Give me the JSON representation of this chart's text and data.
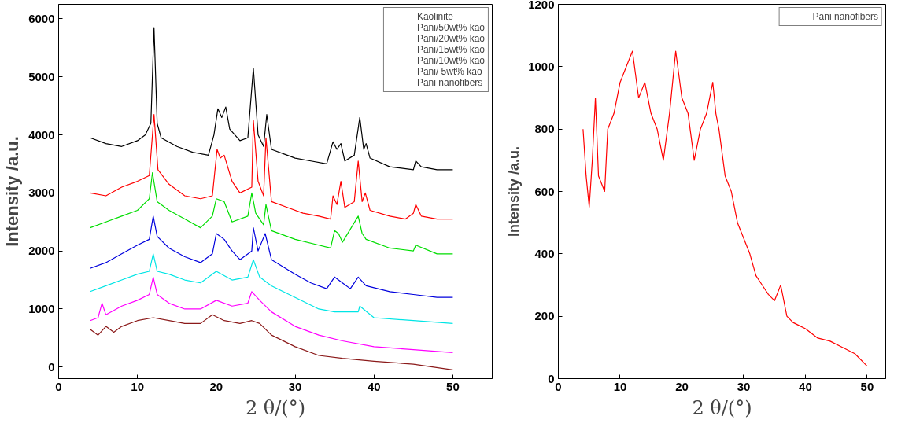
{
  "chart_data": [
    {
      "type": "line",
      "xlabel": "2 θ/(°)",
      "ylabel": "Intensity /a.u.",
      "xlim": [
        0,
        55
      ],
      "ylim": [
        -200,
        6250
      ],
      "xticks": [
        0,
        10,
        20,
        30,
        40,
        50
      ],
      "yticks": [
        0,
        1000,
        2000,
        3000,
        4000,
        5000,
        6000
      ],
      "legend": "top right",
      "series": [
        {
          "name": "Kaolinite",
          "color": "#000000",
          "x": [
            4,
            6,
            8,
            10,
            11,
            11.7,
            12.1,
            12.5,
            13,
            15,
            17,
            19,
            19.7,
            20.2,
            20.7,
            21.2,
            21.7,
            23,
            24,
            24.7,
            25.3,
            26,
            26.4,
            27,
            29,
            30,
            32,
            34,
            34.8,
            35.3,
            35.8,
            36.3,
            37.5,
            38.2,
            38.7,
            39,
            39.5,
            42,
            45,
            45.3,
            46,
            48,
            50
          ],
          "values": [
            3950,
            3850,
            3800,
            3900,
            4000,
            4200,
            5850,
            4200,
            3950,
            3800,
            3700,
            3650,
            4000,
            4450,
            4300,
            4480,
            4100,
            3900,
            3950,
            5150,
            4000,
            3800,
            4350,
            3750,
            3650,
            3600,
            3550,
            3500,
            3880,
            3750,
            3850,
            3550,
            3650,
            4300,
            3750,
            3850,
            3600,
            3450,
            3400,
            3550,
            3450,
            3400,
            3400
          ]
        },
        {
          "name": "Pani/50wt% kao",
          "color": "#ff0000",
          "x": [
            4,
            6,
            8,
            10,
            11.5,
            12.1,
            12.6,
            14,
            16,
            18,
            19.5,
            20.1,
            20.5,
            21,
            22,
            23,
            24.5,
            24.7,
            25.3,
            26,
            26.3,
            27,
            29,
            31,
            33,
            34.5,
            34.8,
            35.3,
            35.8,
            36.3,
            37.5,
            38,
            38.5,
            38.9,
            39.5,
            42,
            44,
            45,
            45.3,
            46,
            48,
            50
          ],
          "values": [
            3000,
            2950,
            3100,
            3200,
            3300,
            4350,
            3400,
            3150,
            2950,
            2900,
            2950,
            3750,
            3600,
            3650,
            3200,
            3000,
            3100,
            4250,
            3200,
            2950,
            3950,
            2850,
            2750,
            2650,
            2600,
            2550,
            2950,
            2800,
            3200,
            2750,
            2850,
            3550,
            2850,
            3000,
            2700,
            2600,
            2550,
            2650,
            2800,
            2600,
            2550,
            2550
          ]
        },
        {
          "name": "Pani/20wt% kao",
          "color": "#00dd00",
          "x": [
            4,
            6,
            8,
            10,
            11.5,
            11.9,
            12.5,
            14,
            16,
            18,
            19.5,
            20,
            21,
            22,
            24,
            24.5,
            25,
            26,
            26.3,
            27,
            30,
            33,
            34.5,
            35,
            35.5,
            36,
            38,
            38.5,
            39,
            42,
            45,
            45.3,
            48,
            50
          ],
          "values": [
            2400,
            2500,
            2600,
            2700,
            2900,
            3350,
            2850,
            2700,
            2550,
            2400,
            2600,
            2900,
            2850,
            2500,
            2600,
            3000,
            2650,
            2450,
            2800,
            2350,
            2200,
            2100,
            2050,
            2350,
            2300,
            2150,
            2600,
            2300,
            2200,
            2050,
            2000,
            2100,
            1950,
            1950
          ]
        },
        {
          "name": "Pani/15wt% kao",
          "color": "#0000dd",
          "x": [
            4,
            6,
            8,
            10,
            11.5,
            12,
            12.5,
            14,
            16,
            18,
            19.5,
            20,
            21,
            22,
            23,
            24.5,
            24.7,
            25.3,
            26.2,
            27,
            30,
            32,
            34,
            35,
            36,
            37,
            38,
            39,
            42,
            45,
            48,
            50
          ],
          "values": [
            1700,
            1800,
            1950,
            2100,
            2200,
            2600,
            2250,
            2050,
            1900,
            1800,
            1950,
            2300,
            2200,
            2000,
            1850,
            2000,
            2400,
            2000,
            2300,
            1850,
            1600,
            1450,
            1350,
            1550,
            1450,
            1350,
            1550,
            1400,
            1300,
            1250,
            1200,
            1200
          ]
        },
        {
          "name": "Pani/10wt% kao",
          "color": "#00e5e5",
          "x": [
            4,
            6,
            8,
            10,
            11.5,
            12,
            12.5,
            14,
            16,
            18,
            20,
            22,
            24,
            24.7,
            25.5,
            27,
            30,
            33,
            35,
            38,
            38.2,
            40,
            45,
            50
          ],
          "values": [
            1300,
            1400,
            1500,
            1600,
            1650,
            1950,
            1650,
            1600,
            1500,
            1450,
            1650,
            1500,
            1550,
            1850,
            1550,
            1400,
            1200,
            1000,
            950,
            950,
            1050,
            850,
            800,
            750
          ]
        },
        {
          "name": "Pani/ 5wt% kao",
          "color": "#ff00ff",
          "x": [
            4,
            5,
            5.5,
            6,
            8,
            10,
            11.5,
            12,
            12.5,
            14,
            16,
            18,
            20,
            22,
            24,
            24.5,
            25.5,
            27,
            30,
            33,
            36,
            40,
            45,
            50
          ],
          "values": [
            800,
            850,
            1100,
            900,
            1050,
            1150,
            1250,
            1550,
            1250,
            1100,
            1000,
            1000,
            1150,
            1050,
            1100,
            1300,
            1150,
            950,
            700,
            550,
            450,
            350,
            300,
            250
          ]
        },
        {
          "name": "Pani nanofibers",
          "color": "#8b1a1a",
          "x": [
            4,
            5,
            6,
            7,
            8,
            10,
            12,
            14,
            16,
            18,
            19.5,
            21,
            23,
            24.5,
            25.5,
            27,
            30,
            33,
            36,
            40,
            45,
            50
          ],
          "values": [
            650,
            550,
            700,
            600,
            700,
            800,
            850,
            800,
            750,
            750,
            900,
            800,
            750,
            800,
            750,
            550,
            350,
            200,
            150,
            100,
            50,
            -50
          ]
        }
      ]
    },
    {
      "type": "line",
      "xlabel": "2 θ/(°)",
      "ylabel": "Intensity /a.u.",
      "xlim": [
        0,
        53
      ],
      "ylim": [
        0,
        1200
      ],
      "xticks": [
        0,
        10,
        20,
        30,
        40,
        50
      ],
      "yticks": [
        0,
        200,
        400,
        600,
        800,
        1000,
        1200
      ],
      "legend": "top right",
      "series": [
        {
          "name": "Pani nanofibers",
          "color": "#ff0000",
          "x": [
            4,
            4.5,
            5,
            5.5,
            6,
            6.5,
            7.5,
            8,
            9,
            10,
            11,
            12,
            13,
            14,
            15,
            16,
            17,
            18,
            19,
            20,
            21,
            22,
            23,
            24,
            25,
            25.5,
            26,
            27,
            28,
            29,
            30,
            31,
            32,
            33,
            34,
            35,
            36,
            37,
            38,
            40,
            42,
            44,
            46,
            48,
            50
          ],
          "values": [
            800,
            650,
            550,
            700,
            900,
            650,
            600,
            800,
            850,
            950,
            1000,
            1050,
            900,
            950,
            850,
            800,
            700,
            850,
            1050,
            900,
            850,
            700,
            800,
            850,
            950,
            850,
            800,
            650,
            600,
            500,
            450,
            400,
            330,
            300,
            270,
            250,
            300,
            200,
            180,
            160,
            130,
            120,
            100,
            80,
            40
          ]
        }
      ]
    }
  ]
}
